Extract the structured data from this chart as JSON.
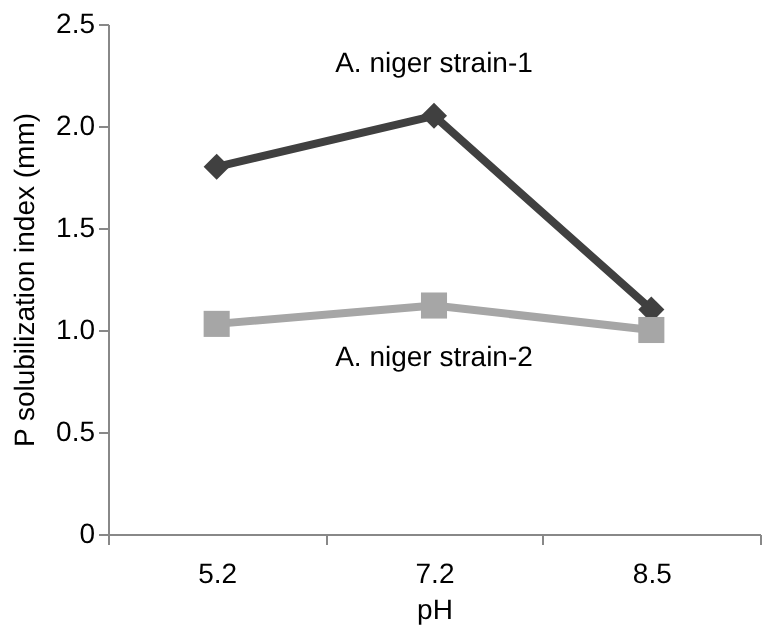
{
  "chart_data": {
    "type": "line",
    "xlabel": "pH",
    "ylabel": "P solubilization index  (mm)",
    "categories": [
      "5.2",
      "7.2",
      "8.5"
    ],
    "series": [
      {
        "name": "A. niger strain-1",
        "color": "#404040",
        "marker": "diamond",
        "values": [
          1.8,
          2.05,
          1.1
        ]
      },
      {
        "name": "A. niger strain-2",
        "color": "#a6a6a6",
        "marker": "square",
        "values": [
          1.03,
          1.12,
          1.0
        ]
      }
    ],
    "ylim": [
      0,
      2.5
    ],
    "yticks": [
      0,
      {
        "value": 0.5,
        "label": "0.5"
      },
      {
        "value": 1,
        "label": "1.0"
      },
      {
        "value": 1.5,
        "label": "1.5"
      },
      {
        "value": 2,
        "label": "2.0"
      },
      {
        "value": 2.5,
        "label": "2.5"
      }
    ]
  }
}
